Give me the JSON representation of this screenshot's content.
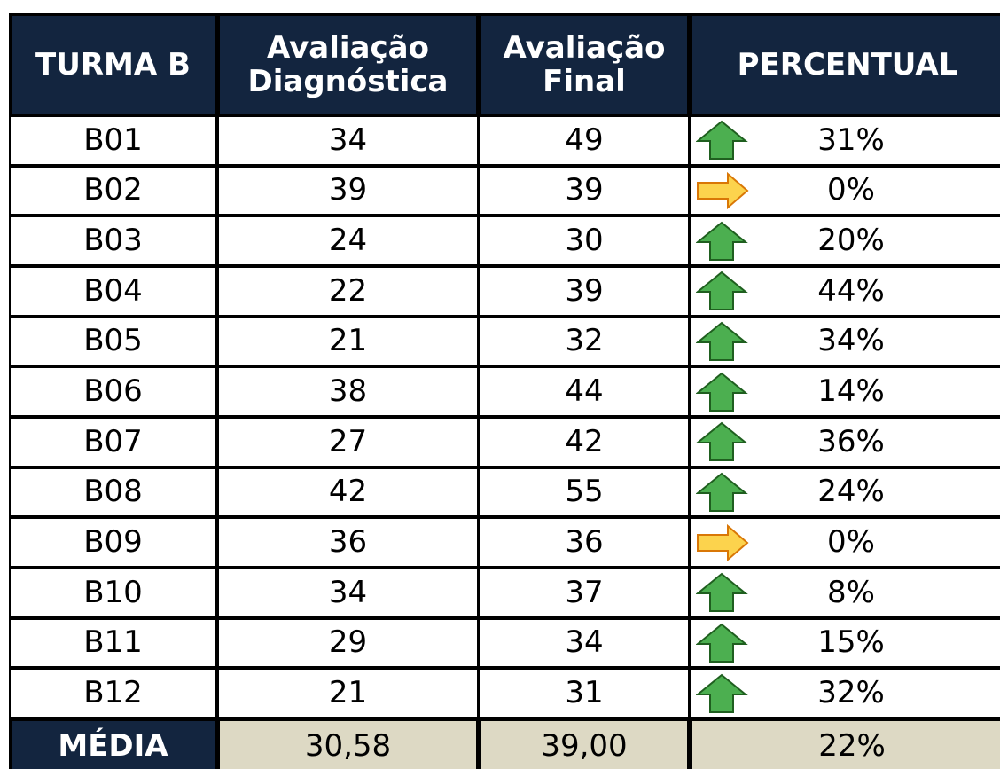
{
  "table": {
    "header": [
      "TURMA B",
      "Avaliação Diagnóstica",
      "Avaliação Final",
      "PERCENTUAL"
    ],
    "rows": [
      [
        "B01",
        "34",
        "49",
        "31%"
      ],
      [
        "B02",
        "39",
        "39",
        "0%"
      ],
      [
        "B03",
        "24",
        "30",
        "20%"
      ],
      [
        "B04",
        "22",
        "39",
        "44%"
      ],
      [
        "B05",
        "21",
        "32",
        "34%"
      ],
      [
        "B06",
        "38",
        "44",
        "14%"
      ],
      [
        "B07",
        "27",
        "42",
        "36%"
      ],
      [
        "B08",
        "42",
        "55",
        "24%"
      ],
      [
        "B09",
        "36",
        "36",
        "0%"
      ],
      [
        "B10",
        "34",
        "37",
        "8%"
      ],
      [
        "B11",
        "29",
        "34",
        "15%"
      ],
      [
        "B12",
        "21",
        "31",
        "32%"
      ]
    ],
    "footer": [
      "MÉDIA",
      "30,58",
      "39,00",
      "22%"
    ]
  }
}
